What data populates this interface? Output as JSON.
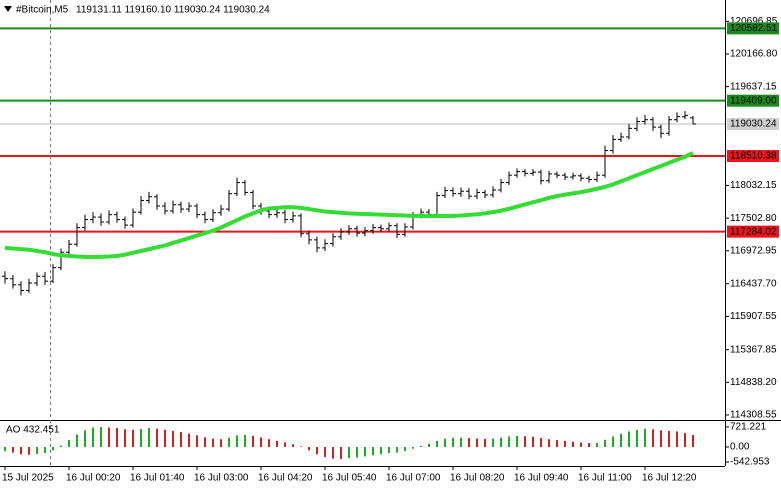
{
  "chart_data": {
    "type": "ohlc",
    "title": "#Bitcoin,M5",
    "header_ohlc": "119131.11 119160.10 119030.24 119030.24",
    "color": "#000000",
    "categories": [
      "15 Jul 2025",
      null,
      null,
      null,
      null,
      null,
      null,
      null,
      "16 Jul 00:20",
      null,
      null,
      null,
      null,
      null,
      null,
      null,
      "16 Jul 01:40",
      null,
      null,
      null,
      null,
      null,
      null,
      null,
      "16 Jul 03:00",
      null,
      null,
      null,
      null,
      null,
      null,
      null,
      "16 Jul 04:20",
      null,
      null,
      null,
      null,
      null,
      null,
      null,
      "16 Jul 05:40",
      null,
      null,
      null,
      null,
      null,
      null,
      null,
      "16 Jul 07:00",
      null,
      null,
      null,
      null,
      null,
      null,
      null,
      "16 Jul 08:20",
      null,
      null,
      null,
      null,
      null,
      null,
      null,
      "16 Jul 09:40",
      null,
      null,
      null,
      null,
      null,
      null,
      null,
      "16 Jul 11:00",
      null,
      null,
      null,
      null,
      null,
      null,
      null,
      "16 Jul 12:20",
      null,
      null,
      null,
      null,
      null,
      null
    ],
    "open": [
      116560,
      116520,
      116420,
      116330,
      116450,
      116560,
      116480,
      116700,
      116950,
      117080,
      117350,
      117480,
      117520,
      117440,
      117560,
      117480,
      117390,
      117600,
      117790,
      117850,
      117700,
      117620,
      117720,
      117650,
      117700,
      117560,
      117480,
      117590,
      117650,
      117900,
      118080,
      117920,
      117700,
      117620,
      117560,
      117590,
      117480,
      117540,
      117250,
      117150,
      117020,
      117090,
      117200,
      117280,
      117330,
      117260,
      117300,
      117350,
      117330,
      117380,
      117240,
      117360,
      117540,
      117600,
      117560,
      117870,
      117950,
      117900,
      117940,
      117860,
      117920,
      117880,
      117960,
      118080,
      118200,
      118260,
      118230,
      118250,
      118110,
      118220,
      118200,
      118170,
      118190,
      118150,
      118130,
      118200,
      118600,
      118780,
      118820,
      118960,
      119070,
      119100,
      118980,
      118880,
      119100,
      119150,
      119131.11
    ],
    "high": [
      116640,
      116580,
      116480,
      116520,
      116620,
      116630,
      116760,
      117010,
      117150,
      117420,
      117560,
      117600,
      117580,
      117630,
      117610,
      117530,
      117660,
      117860,
      117930,
      117890,
      117760,
      117790,
      117770,
      117760,
      117740,
      117610,
      117650,
      117720,
      117960,
      118160,
      118120,
      117960,
      117750,
      117680,
      117660,
      117640,
      117610,
      117580,
      117300,
      117200,
      117160,
      117260,
      117340,
      117390,
      117380,
      117360,
      117410,
      117400,
      117430,
      117420,
      117420,
      117600,
      117660,
      117650,
      117930,
      118010,
      118000,
      118000,
      117990,
      117980,
      117960,
      118020,
      118140,
      118260,
      118310,
      118300,
      118300,
      118290,
      118270,
      118260,
      118240,
      118240,
      118230,
      118190,
      118260,
      118680,
      118850,
      118890,
      119030,
      119140,
      119180,
      119140,
      119020,
      119160,
      119220,
      119240,
      119160.1
    ],
    "low": [
      116440,
      116360,
      116250,
      116290,
      116400,
      116420,
      116450,
      116660,
      116900,
      117040,
      117300,
      117420,
      117380,
      117400,
      117430,
      117330,
      117350,
      117560,
      117740,
      117640,
      117560,
      117580,
      117590,
      117600,
      117500,
      117420,
      117440,
      117540,
      117610,
      117860,
      117870,
      117650,
      117560,
      117500,
      117510,
      117420,
      117430,
      117190,
      117080,
      116950,
      116970,
      117040,
      117150,
      117230,
      117200,
      117210,
      117250,
      117280,
      117290,
      117180,
      117200,
      117320,
      117500,
      117510,
      117520,
      117830,
      117850,
      117850,
      117810,
      117810,
      117830,
      117840,
      117920,
      118040,
      118160,
      118180,
      118190,
      118050,
      118070,
      118150,
      118120,
      118130,
      118100,
      118080,
      118090,
      118160,
      118550,
      118740,
      118780,
      118910,
      119020,
      118920,
      118800,
      118840,
      119060,
      119110,
      119030.24
    ],
    "close": [
      116520,
      116420,
      116330,
      116450,
      116560,
      116480,
      116700,
      116950,
      117080,
      117350,
      117480,
      117520,
      117440,
      117560,
      117480,
      117390,
      117600,
      117790,
      117850,
      117700,
      117620,
      117720,
      117650,
      117700,
      117560,
      117480,
      117590,
      117650,
      117900,
      118080,
      117920,
      117700,
      117620,
      117560,
      117590,
      117480,
      117540,
      117250,
      117150,
      117020,
      117090,
      117200,
      117280,
      117330,
      117260,
      117300,
      117350,
      117330,
      117380,
      117240,
      117360,
      117540,
      117600,
      117560,
      117870,
      117950,
      117900,
      117940,
      117860,
      117920,
      117880,
      117960,
      118080,
      118200,
      118260,
      118230,
      118250,
      118110,
      118220,
      118200,
      118170,
      118190,
      118150,
      118130,
      118200,
      118600,
      118780,
      118820,
      118960,
      119070,
      119100,
      118980,
      118880,
      119100,
      119150,
      119170,
      119030.24
    ],
    "ma": {
      "color": "#33dd33",
      "values": [
        117020,
        117010,
        117000,
        116990,
        116970,
        116950,
        116920,
        116900,
        116890,
        116880,
        116875,
        116872,
        116875,
        116880,
        116890,
        116910,
        116940,
        116970,
        117000,
        117030,
        117060,
        117100,
        117140,
        117180,
        117220,
        117260,
        117300,
        117350,
        117410,
        117470,
        117530,
        117580,
        117630,
        117660,
        117670,
        117680,
        117680,
        117670,
        117650,
        117630,
        117610,
        117600,
        117590,
        117580,
        117575,
        117570,
        117565,
        117560,
        117555,
        117550,
        117545,
        117540,
        117537,
        117535,
        117535,
        117537,
        117540,
        117545,
        117555,
        117565,
        117580,
        117600,
        117625,
        117655,
        117690,
        117725,
        117760,
        117795,
        117830,
        117860,
        117885,
        117905,
        117925,
        117950,
        117980,
        118010,
        118050,
        118100,
        118150,
        118200,
        118250,
        118300,
        118350,
        118400,
        118450,
        118500,
        118560
      ]
    },
    "levels": [
      {
        "value": 120582.51,
        "color": "#1a8a1a"
      },
      {
        "value": 119409,
        "label": "119409.00",
        "color": "#1a8a1a"
      },
      {
        "value": 118510.38,
        "color": "#e8141e"
      },
      {
        "value": 117284.02,
        "color": "#e8141e"
      }
    ],
    "last_price": 119030.24,
    "ylim": [
      114227,
      121043
    ],
    "yticks": [
      120696.85,
      {
        "value": 120166.8,
        "label": "120166.80"
      },
      119637.15,
      118032.15,
      {
        "value": 117502.8,
        "label": "117502.80"
      },
      116972.95,
      {
        "value": 116437.7,
        "label": "116437.70"
      },
      115907.55,
      115367.85,
      {
        "value": 114838.2,
        "label": "114838.20"
      },
      114308.55
    ],
    "ao": {
      "label": "AO 432.451",
      "up_color": "#22aa22",
      "down_color": "#cc2222",
      "ylim": [
        -684,
        972
      ],
      "yticks": [
        721.221,
        {
          "value": 0,
          "label": "0.00"
        },
        -542.953
      ],
      "values": [
        -150,
        -200,
        -260,
        -280,
        -250,
        -220,
        -120,
        50,
        250,
        450,
        600,
        700,
        720,
        700,
        680,
        640,
        620,
        650,
        680,
        660,
        620,
        580,
        540,
        480,
        420,
        350,
        300,
        280,
        330,
        420,
        440,
        400,
        340,
        280,
        220,
        160,
        100,
        20,
        -120,
        -260,
        -360,
        -420,
        -430,
        -400,
        -380,
        -340,
        -300,
        -260,
        -220,
        -200,
        -150,
        -60,
        40,
        120,
        220,
        300,
        330,
        340,
        320,
        300,
        290,
        300,
        340,
        380,
        400,
        390,
        370,
        320,
        280,
        250,
        220,
        190,
        160,
        140,
        150,
        260,
        380,
        480,
        560,
        620,
        660,
        640,
        600,
        580,
        560,
        500,
        432.451
      ]
    }
  }
}
